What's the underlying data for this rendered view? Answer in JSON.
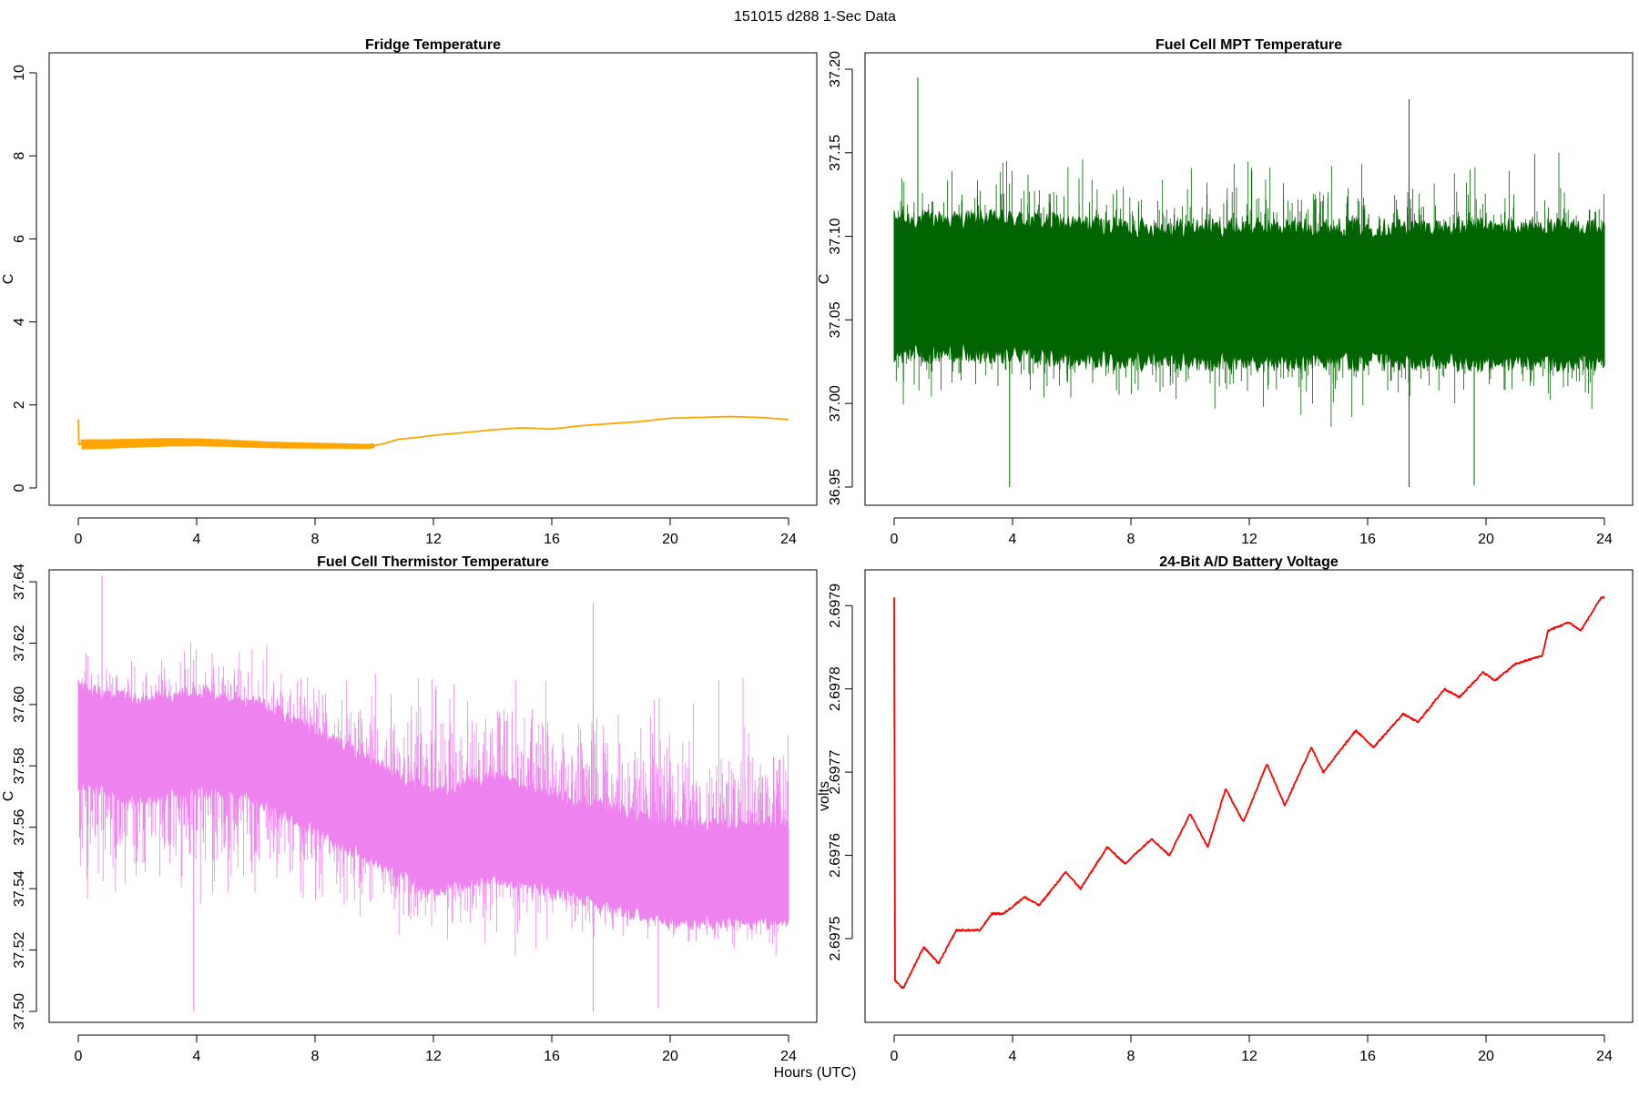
{
  "page": {
    "title": "151015   d288   1-Sec Data",
    "xlabel": "Hours (UTC)"
  },
  "chart_data": [
    {
      "id": "fridge",
      "type": "line",
      "title": "Fridge Temperature",
      "ylabel": "C",
      "xlabel": "Hours (UTC)",
      "xlim": [
        0,
        24
      ],
      "ylim": [
        0,
        10
      ],
      "color": "#FFA500",
      "render": "line",
      "x_ticks": [
        0,
        4,
        8,
        12,
        16,
        20,
        24
      ],
      "x_tick_labels": [
        "0",
        "4",
        "8",
        "12",
        "16",
        "20",
        "24"
      ],
      "y_ticks": [
        0,
        2,
        4,
        6,
        8,
        10
      ],
      "y_tick_labels": [
        "0",
        "2",
        "4",
        "6",
        "8",
        "10"
      ],
      "series": [
        {
          "name": "Fridge Temperature",
          "x": [
            0,
            0.02,
            0.1,
            1,
            2,
            3,
            4,
            5,
            6,
            7,
            8,
            9,
            9.8,
            10.3,
            10.8,
            11.5,
            12,
            13,
            14,
            15,
            16,
            17,
            18,
            19,
            20,
            21,
            22,
            23,
            24
          ],
          "y": [
            1.65,
            1.05,
            1.05,
            1.06,
            1.08,
            1.1,
            1.1,
            1.08,
            1.05,
            1.03,
            1.02,
            1.01,
            1.0,
            1.06,
            1.17,
            1.22,
            1.27,
            1.33,
            1.4,
            1.45,
            1.42,
            1.5,
            1.55,
            1.6,
            1.68,
            1.7,
            1.72,
            1.7,
            1.65
          ],
          "band": {
            "x": [
              0.1,
              10
            ],
            "amplitude": [
              0.12,
              0.05
            ]
          }
        }
      ]
    },
    {
      "id": "mpt",
      "type": "line",
      "title": "Fuel Cell MPT Temperature",
      "ylabel": "C",
      "xlabel": "Hours (UTC)",
      "xlim": [
        0,
        24
      ],
      "ylim": [
        36.95,
        37.2
      ],
      "color": "#006400",
      "render": "noise",
      "x_ticks": [
        0,
        4,
        8,
        12,
        16,
        20,
        24
      ],
      "x_tick_labels": [
        "0",
        "4",
        "8",
        "12",
        "16",
        "20",
        "24"
      ],
      "y_ticks": [
        36.95,
        37.0,
        37.05,
        37.1,
        37.15,
        37.2
      ],
      "y_tick_labels": [
        "36.95",
        "37.00",
        "37.05",
        "37.10",
        "37.15",
        "37.20"
      ],
      "series": [
        {
          "name": "Fuel Cell MPT Temperature",
          "x": [
            0,
            4,
            8,
            12,
            16,
            20,
            24
          ],
          "center": [
            37.07,
            37.07,
            37.065,
            37.065,
            37.065,
            37.065,
            37.065
          ],
          "dense_halfwidth": 0.04,
          "spike_max": 37.195,
          "spike_min": 36.95
        }
      ]
    },
    {
      "id": "thermistor",
      "type": "line",
      "title": "Fuel Cell Thermistor Temperature",
      "ylabel": "C",
      "xlabel": "Hours (UTC)",
      "xlim": [
        0,
        24
      ],
      "ylim": [
        37.5,
        37.64
      ],
      "color": "#EE82EE",
      "render": "noise",
      "x_ticks": [
        0,
        4,
        8,
        12,
        16,
        20,
        24
      ],
      "x_tick_labels": [
        "0",
        "4",
        "8",
        "12",
        "16",
        "20",
        "24"
      ],
      "y_ticks": [
        37.5,
        37.52,
        37.54,
        37.56,
        37.58,
        37.6,
        37.62,
        37.64
      ],
      "y_tick_labels": [
        "37.50",
        "37.52",
        "37.54",
        "37.56",
        "37.58",
        "37.60",
        "37.62",
        "37.64"
      ],
      "series": [
        {
          "name": "Fuel Cell Thermistor Temperature",
          "x": [
            0,
            2,
            4,
            6,
            8,
            10,
            12,
            14,
            16,
            18,
            20,
            22,
            24
          ],
          "center": [
            37.59,
            37.585,
            37.588,
            37.585,
            37.575,
            37.565,
            37.555,
            37.56,
            37.555,
            37.55,
            37.545,
            37.545,
            37.545
          ],
          "dense_halfwidth": 0.016,
          "spike_max": 37.642,
          "spike_min": 37.5
        }
      ]
    },
    {
      "id": "battery",
      "type": "line",
      "title": "24-Bit A/D Battery Voltage",
      "ylabel": "volts",
      "xlabel": "Hours (UTC)",
      "xlim": [
        0,
        24
      ],
      "ylim": [
        2.69743,
        2.69792
      ],
      "color": "#FF0000",
      "render": "line",
      "x_ticks": [
        0,
        4,
        8,
        12,
        16,
        20,
        24
      ],
      "x_tick_labels": [
        "0",
        "4",
        "8",
        "12",
        "16",
        "20",
        "24"
      ],
      "y_ticks": [
        2.6975,
        2.6976,
        2.6977,
        2.6978,
        2.6979
      ],
      "y_tick_labels": [
        "2.6975",
        "2.6976",
        "2.6977",
        "2.6978",
        "2.6979"
      ],
      "series": [
        {
          "name": "24-Bit A/D Battery Voltage",
          "x": [
            0,
            0.03,
            0.3,
            1.0,
            1.5,
            2.1,
            2.9,
            3.3,
            3.7,
            4.4,
            4.9,
            5.8,
            6.3,
            7.2,
            7.8,
            8.7,
            9.3,
            10.0,
            10.6,
            11.2,
            11.8,
            12.6,
            13.2,
            14.1,
            14.5,
            15.6,
            16.2,
            17.2,
            17.7,
            18.6,
            19.1,
            19.9,
            20.3,
            21.0,
            21.9,
            22.1,
            22.8,
            23.2,
            23.9,
            24.0
          ],
          "y": [
            2.69791,
            2.69745,
            2.69744,
            2.69749,
            2.69747,
            2.69751,
            2.69751,
            2.69753,
            2.69753,
            2.69755,
            2.69754,
            2.69758,
            2.69756,
            2.69761,
            2.69759,
            2.69762,
            2.6976,
            2.69765,
            2.69761,
            2.69768,
            2.69764,
            2.69771,
            2.69766,
            2.69773,
            2.6977,
            2.69775,
            2.69773,
            2.69777,
            2.69776,
            2.6978,
            2.69779,
            2.69782,
            2.69781,
            2.69783,
            2.69784,
            2.69787,
            2.69788,
            2.69787,
            2.69791,
            2.69791
          ]
        }
      ]
    }
  ]
}
